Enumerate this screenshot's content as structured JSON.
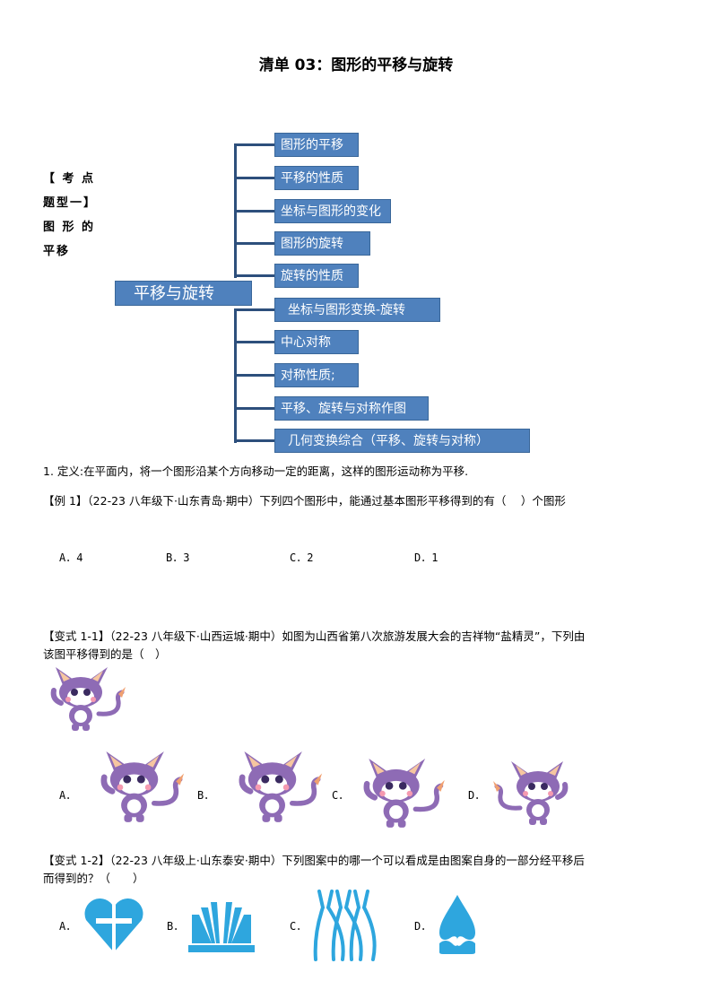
{
  "title": "清单 03：图形的平移与旋转",
  "side_heading": [
    "【 考 点",
    "题型一】",
    "图 形 的",
    "平移"
  ],
  "mindmap": {
    "center": "平移与旋转",
    "branches": [
      "图形的平移",
      "平移的性质",
      "坐标与图形的变化",
      "图形的旋转",
      "旋转的性质",
      "坐标与图形变换-旋转",
      "中心对称",
      "对称性质;",
      "平移、旋转与对称作图",
      "几何变换综合（平移、旋转与对称）"
    ],
    "box_color": "#4f81bd",
    "line_color": "#2d4f7c"
  },
  "definition": "1. 定义:在平面内，将一个图形沿某个方向移动一定的距离，这样的图形运动称为平移.",
  "example1": {
    "text": "【例 1】（22-23 八年级下·山东青岛·期中）下列四个图形中，能通过基本图形平移得到的有（　 ）个图形",
    "options": [
      "A．4",
      "B．3",
      "C．2",
      "D．1"
    ]
  },
  "variant1_1": {
    "line1": "【变式 1-1】（22-23 八年级下·山西运城·期中）如图为山西省第八次旅游发展大会的吉祥物“盐精灵”，下列由",
    "line2": "该图平移得到的是（　）",
    "options": [
      "A．",
      "B．",
      "C．",
      "D．"
    ],
    "mascot_color": "#8e6bb5"
  },
  "variant1_2": {
    "line1": "【变式 1-2】（22-23 八年级上·山东泰安·期中）下列图案中的哪一个可以看成是由图案自身的一部分经平移后",
    "line2": "而得到的？（　　）",
    "options": [
      "A．",
      "B．",
      "C．",
      "D．"
    ],
    "icon_color": "#2ea6de"
  }
}
